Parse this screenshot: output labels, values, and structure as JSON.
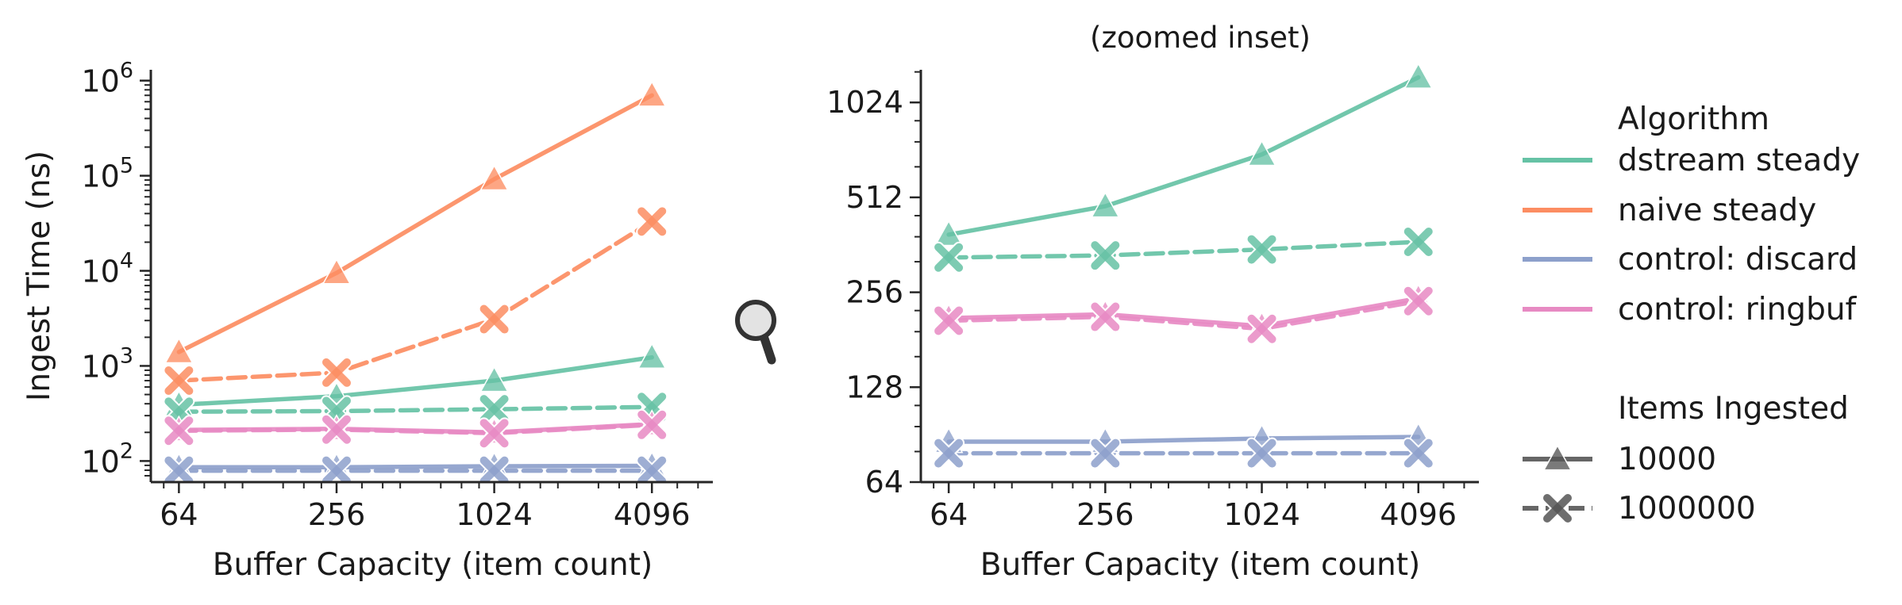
{
  "chart_data": [
    {
      "type": "line",
      "panel": "main",
      "title": "",
      "xlabel": "Buffer Capacity (item count)",
      "ylabel": "Ingest Time (ns)",
      "x_scale": "log2",
      "y_scale": "log10",
      "x": [
        64,
        256,
        1024,
        4096
      ],
      "x_tick_labels": [
        "64",
        "256",
        "1024",
        "4096"
      ],
      "xlim": [
        50,
        7000
      ],
      "ylim": [
        60,
        1300000
      ],
      "y_ticks": [
        {
          "value": 100,
          "base": "10",
          "exp": "2"
        },
        {
          "value": 1000,
          "base": "10",
          "exp": "3"
        },
        {
          "value": 10000,
          "base": "10",
          "exp": "4"
        },
        {
          "value": 100000,
          "base": "10",
          "exp": "5"
        },
        {
          "value": 1000000,
          "base": "10",
          "exp": "6"
        }
      ],
      "series": [
        {
          "name": "dstream steady",
          "items_ingested": "10000",
          "color": "#66c2a5",
          "values": [
            390,
            480,
            700,
            1230
          ]
        },
        {
          "name": "dstream steady",
          "items_ingested": "1000000",
          "color": "#66c2a5",
          "values": [
            330,
            335,
            350,
            370
          ]
        },
        {
          "name": "naive steady",
          "items_ingested": "10000",
          "color": "#fc8d62",
          "values": [
            1400,
            9500,
            92000,
            700000
          ]
        },
        {
          "name": "naive steady",
          "items_ingested": "1000000",
          "color": "#fc8d62",
          "values": [
            700,
            850,
            3100,
            33000
          ]
        },
        {
          "name": "control: discard",
          "items_ingested": "10000",
          "color": "#8da0cb",
          "values": [
            86,
            86,
            88,
            89
          ]
        },
        {
          "name": "control: discard",
          "items_ingested": "1000000",
          "color": "#8da0cb",
          "values": [
            79,
            79,
            79,
            79
          ]
        },
        {
          "name": "control: ringbuf",
          "items_ingested": "10000",
          "color": "#e78ac3",
          "values": [
            212,
            218,
            200,
            245
          ]
        },
        {
          "name": "control: ringbuf",
          "items_ingested": "1000000",
          "color": "#e78ac3",
          "values": [
            208,
            214,
            196,
            240
          ]
        }
      ]
    },
    {
      "type": "line",
      "panel": "inset",
      "title": "(zoomed inset)",
      "xlabel": "Buffer Capacity (item count)",
      "ylabel": "",
      "x_scale": "log2",
      "y_scale": "log2",
      "x": [
        64,
        256,
        1024,
        4096
      ],
      "x_tick_labels": [
        "64",
        "256",
        "1024",
        "4096"
      ],
      "xlim": [
        50,
        7000
      ],
      "ylim": [
        64,
        1300
      ],
      "y_ticks": [
        {
          "value": 64,
          "label": "64"
        },
        {
          "value": 128,
          "label": "128"
        },
        {
          "value": 256,
          "label": "256"
        },
        {
          "value": 512,
          "label": "512"
        },
        {
          "value": 1024,
          "label": "1024"
        }
      ],
      "series": [
        {
          "name": "dstream steady",
          "items_ingested": "10000",
          "color": "#66c2a5",
          "values": [
            390,
            480,
            700,
            1230
          ]
        },
        {
          "name": "dstream steady",
          "items_ingested": "1000000",
          "color": "#66c2a5",
          "values": [
            330,
            335,
            350,
            370
          ]
        },
        {
          "name": "control: ringbuf",
          "items_ingested": "10000",
          "color": "#e78ac3",
          "values": [
            212,
            218,
            200,
            245
          ]
        },
        {
          "name": "control: ringbuf",
          "items_ingested": "1000000",
          "color": "#e78ac3",
          "values": [
            208,
            214,
            196,
            240
          ]
        },
        {
          "name": "control: discard",
          "items_ingested": "10000",
          "color": "#8da0cb",
          "values": [
            86,
            86,
            88,
            89
          ]
        },
        {
          "name": "control: discard",
          "items_ingested": "1000000",
          "color": "#8da0cb",
          "values": [
            79,
            79,
            79,
            79
          ]
        }
      ]
    }
  ],
  "legend": {
    "placement": "right",
    "algorithm_title": "Algorithm",
    "algorithms": [
      {
        "name": "dstream steady",
        "color": "#66c2a5"
      },
      {
        "name": "naive steady",
        "color": "#fc8d62"
      },
      {
        "name": "control: discard",
        "color": "#8da0cb"
      },
      {
        "name": "control: ringbuf",
        "color": "#e78ac3"
      }
    ],
    "items_title": "Items Ingested",
    "items": [
      {
        "name": "10000",
        "marker": "triangle",
        "dash": "solid"
      },
      {
        "name": "1000000",
        "marker": "x",
        "dash": "dashed"
      }
    ]
  },
  "icons": {
    "zoom": "magnifier-icon"
  }
}
